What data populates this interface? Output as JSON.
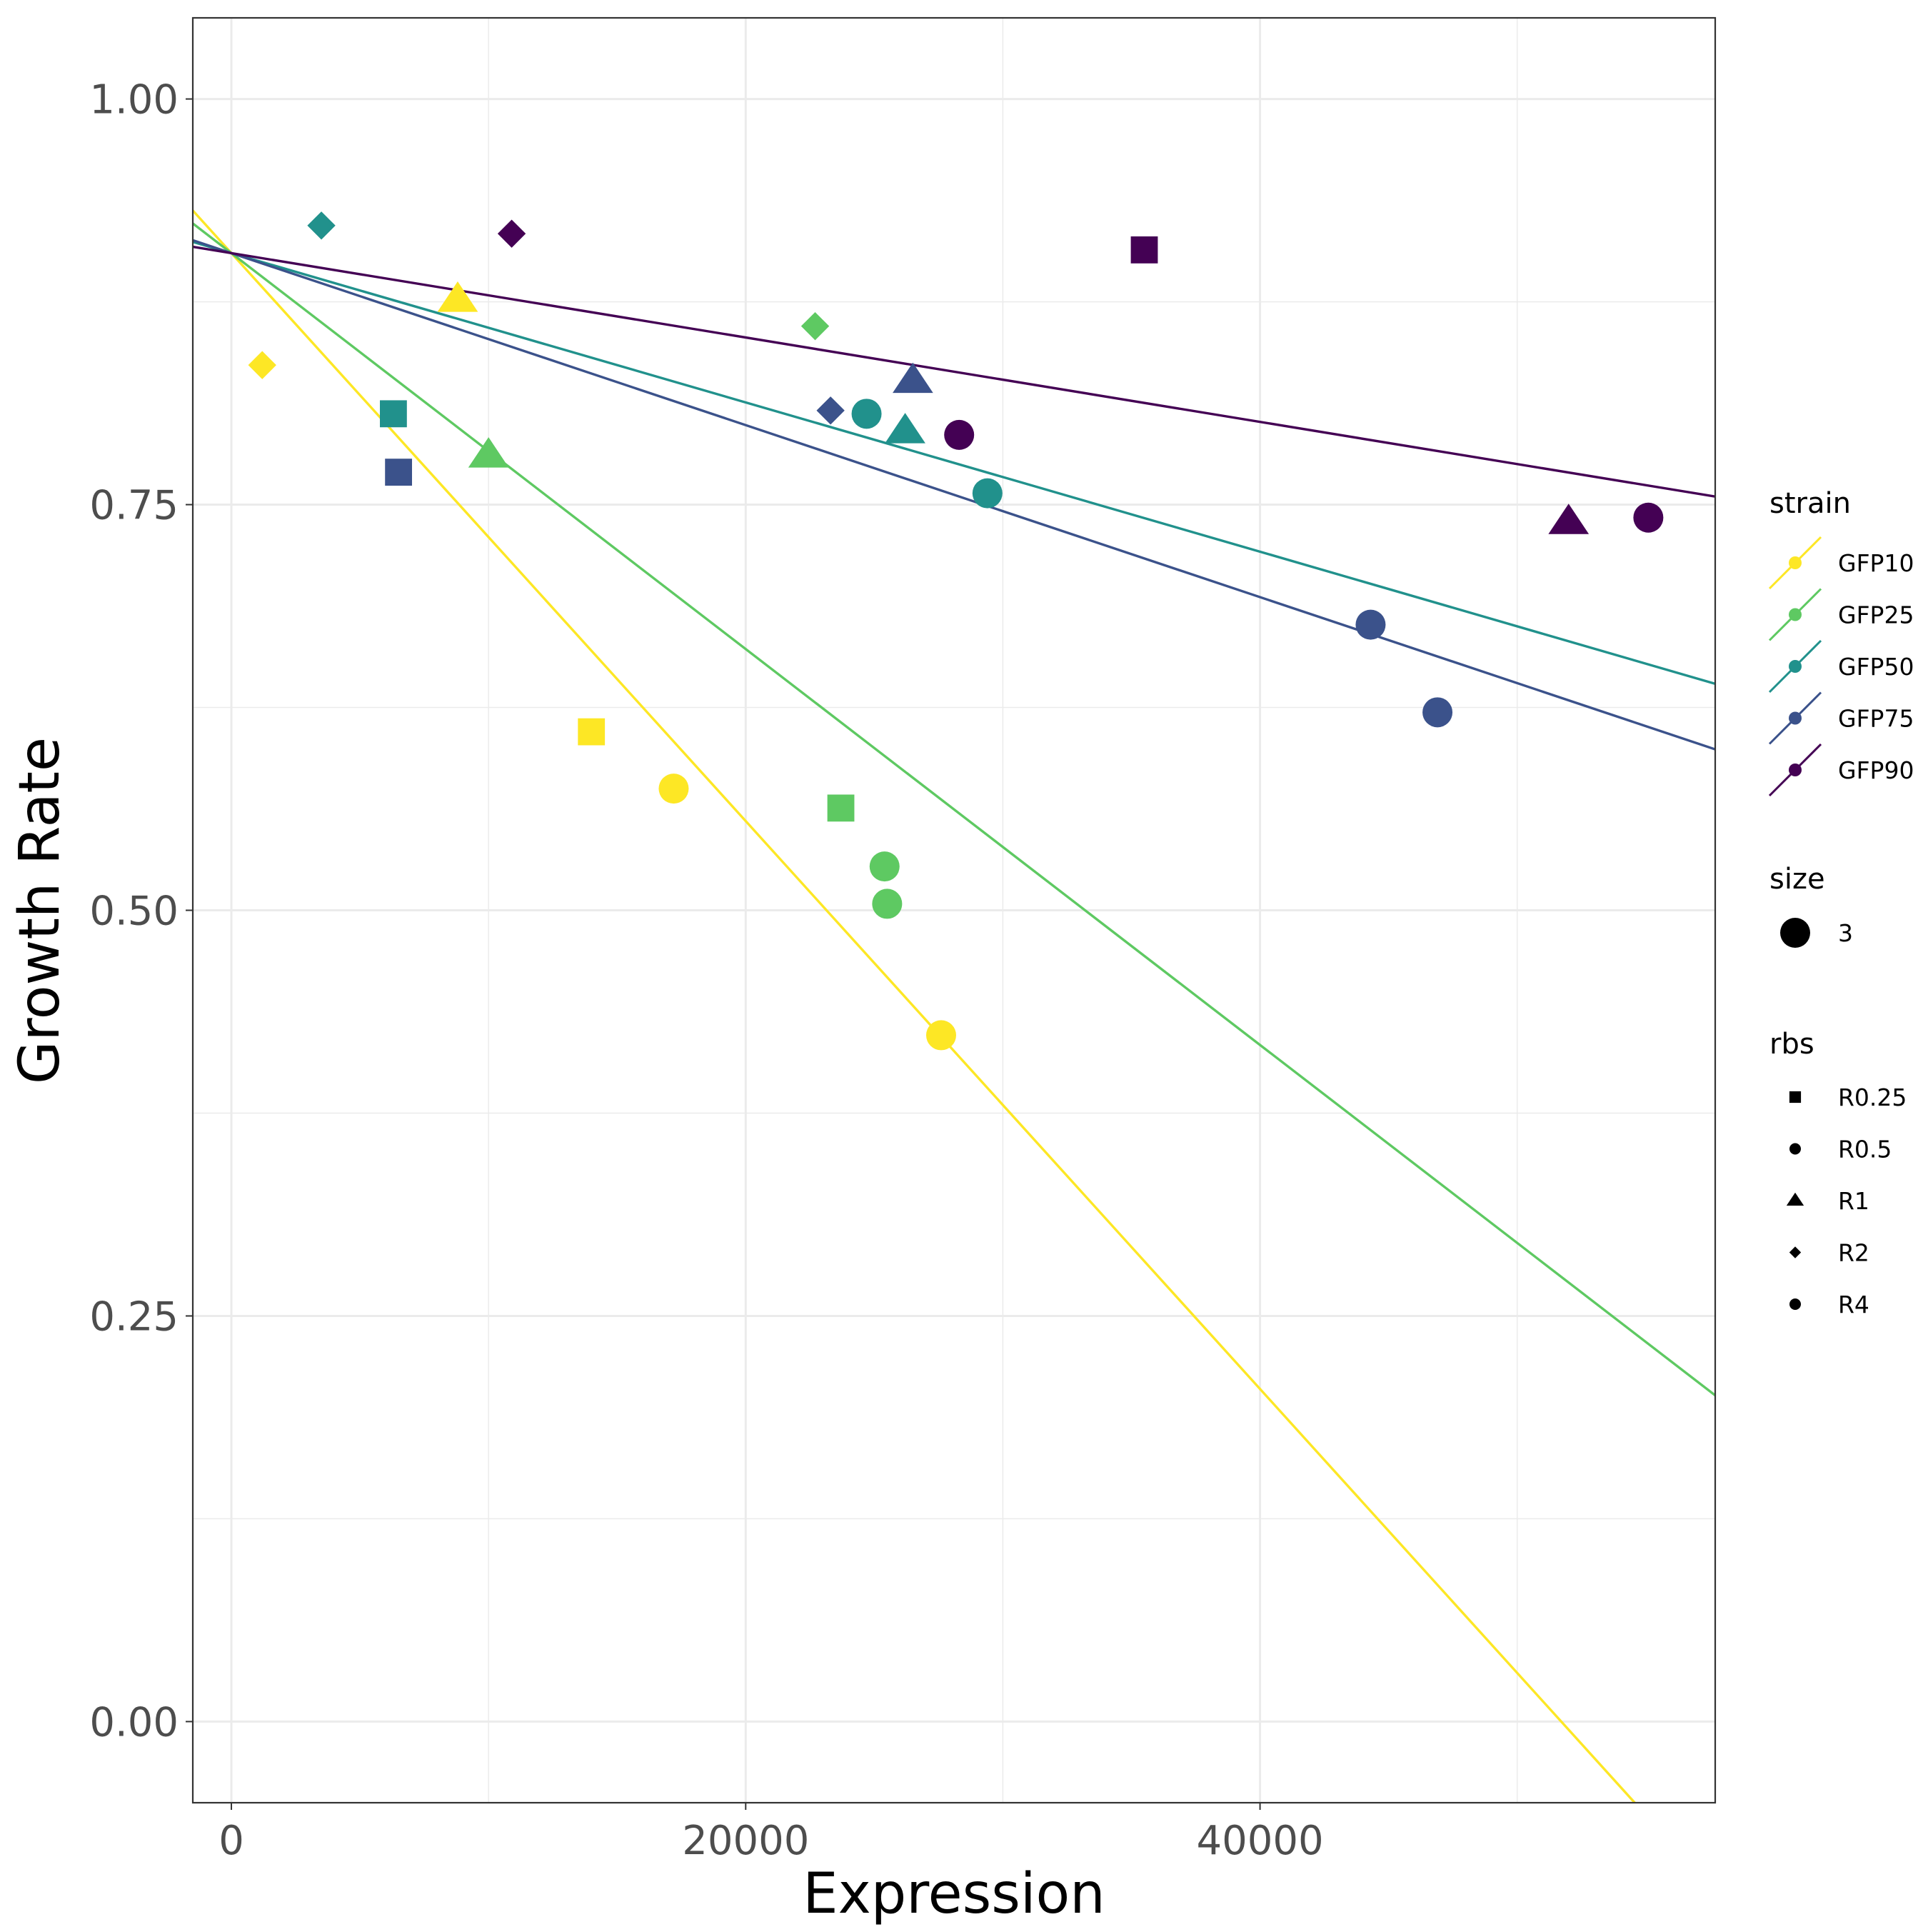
{
  "chart_data": {
    "type": "scatter",
    "title": "",
    "xlabel": "Expression",
    "ylabel": "Growth Rate",
    "xlim": [
      -1500,
      57700
    ],
    "ylim": [
      -0.05,
      1.05
    ],
    "x_ticks": [
      0,
      20000,
      40000
    ],
    "x_tick_labels": [
      "0",
      "20000",
      "40000"
    ],
    "y_ticks": [
      0,
      0.25,
      0.5,
      0.75,
      1.0
    ],
    "y_tick_labels": [
      "0.00",
      "0.25",
      "0.50",
      "0.75",
      "1.00"
    ],
    "grid": true,
    "legend_position": "right",
    "colors": {
      "GFP10": "#fde725",
      "GFP25": "#5ec962",
      "GFP50": "#21918c",
      "GFP75": "#3b528b",
      "GFP90": "#440154"
    },
    "series": [
      {
        "name": "GFP10",
        "fit_line": {
          "intercept": 0.905,
          "slope": -1.75e-05
        },
        "points": [
          {
            "x": 1200,
            "y": 0.836,
            "shape": "R2"
          },
          {
            "x": 8800,
            "y": 0.876,
            "shape": "R1"
          },
          {
            "x": 14000,
            "y": 0.61,
            "shape": "R0.25"
          },
          {
            "x": 17200,
            "y": 0.575,
            "shape": "R0.5"
          },
          {
            "x": 27600,
            "y": 0.423,
            "shape": "R4"
          }
        ]
      },
      {
        "name": "GFP25",
        "fit_line": {
          "intercept": 0.905,
          "slope": -1.22e-05
        },
        "points": [
          {
            "x": 10000,
            "y": 0.78,
            "shape": "R1"
          },
          {
            "x": 22700,
            "y": 0.86,
            "shape": "R2"
          },
          {
            "x": 23700,
            "y": 0.563,
            "shape": "R0.25"
          },
          {
            "x": 25400,
            "y": 0.527,
            "shape": "R0.5"
          },
          {
            "x": 25500,
            "y": 0.504,
            "shape": "R4"
          }
        ]
      },
      {
        "name": "GFP50",
        "fit_line": {
          "intercept": 0.905,
          "slope": -4.6e-06
        },
        "points": [
          {
            "x": 3500,
            "y": 0.922,
            "shape": "R2"
          },
          {
            "x": 6300,
            "y": 0.806,
            "shape": "R0.25"
          },
          {
            "x": 24700,
            "y": 0.806,
            "shape": "R0.5"
          },
          {
            "x": 26200,
            "y": 0.795,
            "shape": "R1"
          },
          {
            "x": 29400,
            "y": 0.757,
            "shape": "R4"
          }
        ]
      },
      {
        "name": "GFP75",
        "fit_line": {
          "intercept": 0.905,
          "slope": -5.3e-06
        },
        "points": [
          {
            "x": 6500,
            "y": 0.77,
            "shape": "R0.25"
          },
          {
            "x": 23300,
            "y": 0.808,
            "shape": "R2"
          },
          {
            "x": 26500,
            "y": 0.826,
            "shape": "R1"
          },
          {
            "x": 44300,
            "y": 0.676,
            "shape": "R0.5"
          },
          {
            "x": 46900,
            "y": 0.622,
            "shape": "R4"
          }
        ]
      },
      {
        "name": "GFP90",
        "fit_line": {
          "intercept": 0.905,
          "slope": -2.6e-06
        },
        "points": [
          {
            "x": 10900,
            "y": 0.917,
            "shape": "R2"
          },
          {
            "x": 28300,
            "y": 0.793,
            "shape": "R0.5"
          },
          {
            "x": 35500,
            "y": 0.907,
            "shape": "R0.25"
          },
          {
            "x": 52000,
            "y": 0.739,
            "shape": "R1"
          },
          {
            "x": 55100,
            "y": 0.742,
            "shape": "R4"
          }
        ]
      }
    ],
    "legends": {
      "strain": {
        "title": "strain",
        "items": [
          "GFP10",
          "GFP25",
          "GFP50",
          "GFP75",
          "GFP90"
        ]
      },
      "size": {
        "title": "size",
        "items": [
          "3"
        ]
      },
      "rbs": {
        "title": "rbs",
        "items": [
          "R0.25",
          "R0.5",
          "R1",
          "R2",
          "R4"
        ]
      }
    },
    "rbs_shapes": {
      "R0.25": "square",
      "R0.5": "circle",
      "R1": "triangle",
      "R2": "diamond",
      "R4": "circle"
    }
  }
}
